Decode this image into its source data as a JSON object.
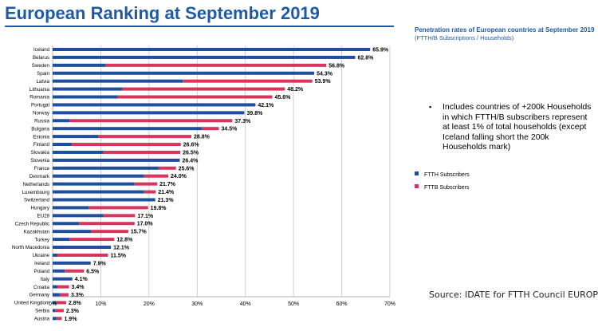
{
  "header": {
    "title": "European Ranking at September 2019",
    "subtitle": "Penetration rates of European countries at September 2019",
    "subtitle_units": "(FTTH/B Subscriptions / Households)"
  },
  "note": {
    "bullet": "▪",
    "text": "Includes countries of +200k Households in which FTTH/B subscribers represent at least 1% of total households (except Iceland falling short the 200k Households mark)"
  },
  "source": "Source: IDATE for FTTH Council EUROPE",
  "colors": {
    "ftth": "#1f4e9c",
    "fttb": "#d6365c"
  },
  "chart_data": {
    "type": "bar",
    "orientation": "horizontal",
    "stacked": true,
    "xlim": [
      0,
      70
    ],
    "xticks": [
      "0%",
      "10%",
      "20%",
      "30%",
      "40%",
      "50%",
      "60%",
      "70%"
    ],
    "legend": [
      "FTTH Subscribers",
      "FTTB Subscribers"
    ],
    "categories": [
      "Iceland",
      "Belarus",
      "Sweden",
      "Spain",
      "Latvia",
      "Lithuania",
      "Romania",
      "Portugal",
      "Norway",
      "Russia",
      "Bulgaria",
      "Estonia",
      "Finland",
      "Slovakia",
      "Slovenia",
      "France",
      "Denmark",
      "Netherlands",
      "Luxembourg",
      "Switzerland",
      "Hungary",
      "EU28",
      "Czech Republic",
      "Kazakhstan",
      "Turkey",
      "North Macedonia",
      "Ukraine",
      "Ireland",
      "Poland",
      "Italy",
      "Croatia",
      "Germany",
      "United Kingdom",
      "Serbia",
      "Austria"
    ],
    "totals": [
      "65.9%",
      "62.8%",
      "56.8%",
      "54.3%",
      "53.9%",
      "48.2%",
      "45.6%",
      "42.1%",
      "39.8%",
      "37.3%",
      "34.5%",
      "28.8%",
      "26.6%",
      "26.5%",
      "26.4%",
      "25.6%",
      "24.0%",
      "21.7%",
      "21.4%",
      "21.3%",
      "19.8%",
      "17.1%",
      "17.0%",
      "15.7%",
      "12.8%",
      "12.1%",
      "11.5%",
      "7.9%",
      "6.5%",
      "4.1%",
      "3.4%",
      "3.3%",
      "2.8%",
      "2.3%",
      "1.9%"
    ],
    "series": [
      {
        "name": "FTTH Subscribers",
        "values": [
          65.9,
          62.8,
          11.0,
          54.3,
          27.0,
          14.5,
          13.5,
          42.1,
          39.8,
          3.5,
          31.0,
          9.5,
          4.0,
          10.5,
          26.4,
          22.0,
          19.0,
          17.0,
          19.0,
          21.3,
          7.5,
          10.5,
          5.5,
          8.0,
          3.5,
          12.1,
          1.0,
          7.9,
          2.5,
          4.1,
          1.0,
          1.5,
          0.8,
          0.5,
          0.8
        ]
      },
      {
        "name": "FTTB Subscribers",
        "values": [
          0,
          0,
          45.8,
          0,
          26.9,
          33.7,
          32.1,
          0,
          0,
          33.8,
          3.5,
          19.3,
          22.6,
          16.0,
          0,
          3.6,
          5.0,
          4.7,
          2.4,
          0,
          12.3,
          6.6,
          11.5,
          7.7,
          9.3,
          0,
          10.5,
          0,
          4.0,
          0,
          2.4,
          1.8,
          2.0,
          1.8,
          1.1
        ]
      }
    ]
  }
}
